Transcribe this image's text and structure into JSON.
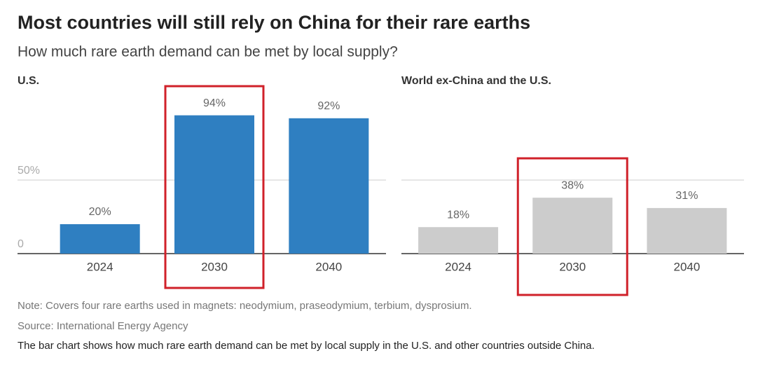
{
  "title": "Most countries will still rely on China for their rare earths",
  "subtitle": "How much rare earth demand can be met by local supply?",
  "note": "Note: Covers four rare earths used in magnets: neodymium, praseodymium, terbium, dysprosium.",
  "source": "Source: International Energy Agency",
  "description": "The bar chart shows how much rare earth demand can be met by local supply in the U.S. and other countries outside China.",
  "chart_data": [
    {
      "type": "bar",
      "title": "U.S.",
      "categories": [
        "2024",
        "2030",
        "2040"
      ],
      "values": [
        20,
        94,
        92
      ],
      "value_labels": [
        "20%",
        "94%",
        "92%"
      ],
      "color": "#2f7fc1",
      "ylim": [
        0,
        100
      ],
      "yticks": [
        0,
        {
          "value": 50,
          "label": "50%"
        }
      ],
      "show_ytick_labels": true,
      "grid": true,
      "highlight_index": 1,
      "highlight_color": "#d0212a"
    },
    {
      "type": "bar",
      "title": "World ex-China and the U.S.",
      "categories": [
        "2024",
        "2030",
        "2040"
      ],
      "values": [
        18,
        38,
        31
      ],
      "value_labels": [
        "18%",
        "38%",
        "31%"
      ],
      "color": "#cccccc",
      "ylim": [
        0,
        100
      ],
      "yticks": [
        0,
        50
      ],
      "show_ytick_labels": false,
      "grid": true,
      "highlight_index": 1,
      "highlight_color": "#d0212a"
    }
  ]
}
